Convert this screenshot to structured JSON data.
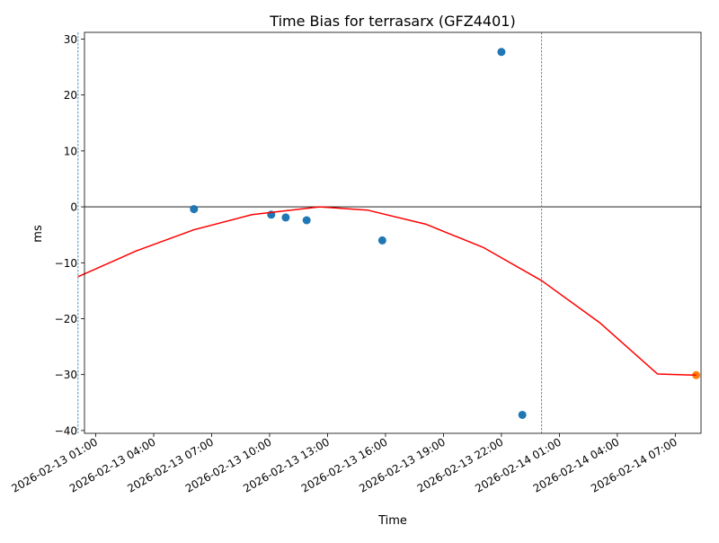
{
  "chart_data": {
    "type": "scatter",
    "title": "Time Bias for terrasarx (GFZ4401)",
    "xlabel": "Time",
    "ylabel": "ms",
    "xlim": [
      "2026-02-13 00:25",
      "2026-02-14 08:20"
    ],
    "ylim": [
      -40.5,
      31.2
    ],
    "x_ticks": [
      "2026-02-13 01:00",
      "2026-02-13 04:00",
      "2026-02-13 07:00",
      "2026-02-13 10:00",
      "2026-02-13 13:00",
      "2026-02-13 16:00",
      "2026-02-13 19:00",
      "2026-02-13 22:00",
      "2026-02-14 01:00",
      "2026-02-14 04:00",
      "2026-02-14 07:00"
    ],
    "x_tick_labels": [
      "2026-02-13 01:00",
      "2026-02-13 04:00",
      "2026-02-13 07:00",
      "2026-02-13 10:00",
      "2026-02-13 13:00",
      "2026-02-13 16:00",
      "2026-02-13 19:00",
      "2026-02-13 22:00",
      "2026-02-14 01:00",
      "2026-02-14 04:00",
      "2026-02-14 07:00"
    ],
    "y_ticks": [
      -40,
      -30,
      -20,
      -10,
      0,
      10,
      20,
      30
    ],
    "grid": false,
    "colors": {
      "points": "#1f77b4",
      "prediction": "#ff7f0e",
      "fit": "#ff0000",
      "vlines": "#1f77b4",
      "zero_line": "#000000"
    },
    "series": [
      {
        "marker": "circle",
        "color": "#1f77b4",
        "x": [
          "2026-02-13 06:05",
          "2026-02-13 10:05",
          "2026-02-13 10:50",
          "2026-02-13 11:55",
          "2026-02-13 15:50",
          "2026-02-13 22:00",
          "2026-02-13 23:05"
        ],
        "y": [
          -0.4,
          -1.4,
          -1.9,
          -2.4,
          -6.0,
          27.7,
          -37.2
        ]
      },
      {
        "marker": "circle",
        "color": "#ff7f0e",
        "x": [
          "2026-02-14 08:05"
        ],
        "y": [
          -30.1
        ]
      },
      {
        "type": "line",
        "color": "#ff0000",
        "fit": "quadratic",
        "x": [
          "2026-02-13 00:05",
          "2026-02-13 03:05",
          "2026-02-13 06:05",
          "2026-02-13 09:05",
          "2026-02-13 12:35",
          "2026-02-13 15:05",
          "2026-02-13 18:05",
          "2026-02-13 21:05",
          "2026-02-14 00:05",
          "2026-02-14 03:05",
          "2026-02-14 06:05",
          "2026-02-14 08:05"
        ],
        "y": [
          -12.5,
          -7.9,
          -4.1,
          -1.4,
          0.0,
          -0.6,
          -3.1,
          -7.3,
          -13.2,
          -20.7,
          -29.9,
          -30.1
        ]
      }
    ],
    "vlines": [
      "2026-02-13 00:05",
      "2026-02-14 00:05"
    ],
    "hline": 0
  }
}
